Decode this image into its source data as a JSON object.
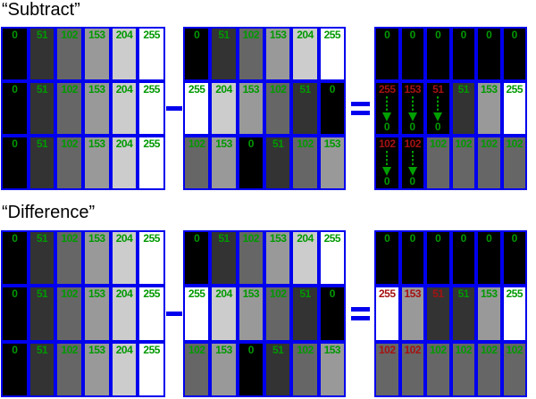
{
  "palette": {
    "background": "#ffffff",
    "grid_border_blue": "#0000ee",
    "value_green": "#009900",
    "value_red": "#a51212",
    "arrow_green": "#00a000",
    "title_black": "#000000"
  },
  "operators": {
    "minus": "−",
    "equals": "="
  },
  "sections": [
    {
      "title": "“Subtract”",
      "panels": [
        {
          "name": "operand-a",
          "rows": [
            [
              {
                "label": "0",
                "bg": 0,
                "color": "green"
              },
              {
                "label": "51",
                "bg": 51,
                "color": "green"
              },
              {
                "label": "102",
                "bg": 102,
                "color": "green"
              },
              {
                "label": "153",
                "bg": 153,
                "color": "green"
              },
              {
                "label": "204",
                "bg": 204,
                "color": "green"
              },
              {
                "label": "255",
                "bg": 255,
                "color": "green"
              }
            ],
            [
              {
                "label": "0",
                "bg": 0,
                "color": "green"
              },
              {
                "label": "51",
                "bg": 51,
                "color": "green"
              },
              {
                "label": "102",
                "bg": 102,
                "color": "green"
              },
              {
                "label": "153",
                "bg": 153,
                "color": "green"
              },
              {
                "label": "204",
                "bg": 204,
                "color": "green"
              },
              {
                "label": "255",
                "bg": 255,
                "color": "green"
              }
            ],
            [
              {
                "label": "0",
                "bg": 0,
                "color": "green"
              },
              {
                "label": "51",
                "bg": 51,
                "color": "green"
              },
              {
                "label": "102",
                "bg": 102,
                "color": "green"
              },
              {
                "label": "153",
                "bg": 153,
                "color": "green"
              },
              {
                "label": "204",
                "bg": 204,
                "color": "green"
              },
              {
                "label": "255",
                "bg": 255,
                "color": "green"
              }
            ]
          ]
        },
        {
          "name": "operand-b",
          "rows": [
            [
              {
                "label": "0",
                "bg": 0,
                "color": "green"
              },
              {
                "label": "51",
                "bg": 51,
                "color": "green"
              },
              {
                "label": "102",
                "bg": 102,
                "color": "green"
              },
              {
                "label": "153",
                "bg": 153,
                "color": "green"
              },
              {
                "label": "204",
                "bg": 204,
                "color": "green"
              },
              {
                "label": "255",
                "bg": 255,
                "color": "green"
              }
            ],
            [
              {
                "label": "255",
                "bg": 255,
                "color": "green"
              },
              {
                "label": "204",
                "bg": 204,
                "color": "green"
              },
              {
                "label": "153",
                "bg": 153,
                "color": "green"
              },
              {
                "label": "102",
                "bg": 102,
                "color": "green"
              },
              {
                "label": "51",
                "bg": 51,
                "color": "green"
              },
              {
                "label": "0",
                "bg": 0,
                "color": "green"
              }
            ],
            [
              {
                "label": "102",
                "bg": 102,
                "color": "green"
              },
              {
                "label": "153",
                "bg": 153,
                "color": "green"
              },
              {
                "label": "0",
                "bg": 0,
                "color": "green"
              },
              {
                "label": "51",
                "bg": 51,
                "color": "green"
              },
              {
                "label": "102",
                "bg": 102,
                "color": "green"
              },
              {
                "label": "153",
                "bg": 153,
                "color": "green"
              }
            ]
          ]
        },
        {
          "name": "result",
          "rows": [
            [
              {
                "label": "0",
                "bg": 0,
                "color": "green"
              },
              {
                "label": "0",
                "bg": 0,
                "color": "green"
              },
              {
                "label": "0",
                "bg": 0,
                "color": "green"
              },
              {
                "label": "0",
                "bg": 0,
                "color": "green"
              },
              {
                "label": "0",
                "bg": 0,
                "color": "green"
              },
              {
                "label": "0",
                "bg": 0,
                "color": "green"
              }
            ],
            [
              {
                "label": "255",
                "bg": 0,
                "color": "red",
                "arrow": true,
                "result": "0"
              },
              {
                "label": "153",
                "bg": 0,
                "color": "red",
                "arrow": true,
                "result": "0"
              },
              {
                "label": "51",
                "bg": 0,
                "color": "red",
                "arrow": true,
                "result": "0"
              },
              {
                "label": "51",
                "bg": 51,
                "color": "green"
              },
              {
                "label": "153",
                "bg": 153,
                "color": "green"
              },
              {
                "label": "255",
                "bg": 255,
                "color": "green"
              }
            ],
            [
              {
                "label": "102",
                "bg": 0,
                "color": "red",
                "arrow": true,
                "result": "0"
              },
              {
                "label": "102",
                "bg": 0,
                "color": "red",
                "arrow": true,
                "result": "0"
              },
              {
                "label": "102",
                "bg": 102,
                "color": "green"
              },
              {
                "label": "102",
                "bg": 102,
                "color": "green"
              },
              {
                "label": "102",
                "bg": 102,
                "color": "green"
              },
              {
                "label": "102",
                "bg": 102,
                "color": "green"
              }
            ]
          ]
        }
      ]
    },
    {
      "title": "“Difference”",
      "panels": [
        {
          "name": "operand-a",
          "rows": [
            [
              {
                "label": "0",
                "bg": 0,
                "color": "green"
              },
              {
                "label": "51",
                "bg": 51,
                "color": "green"
              },
              {
                "label": "102",
                "bg": 102,
                "color": "green"
              },
              {
                "label": "153",
                "bg": 153,
                "color": "green"
              },
              {
                "label": "204",
                "bg": 204,
                "color": "green"
              },
              {
                "label": "255",
                "bg": 255,
                "color": "green"
              }
            ],
            [
              {
                "label": "0",
                "bg": 0,
                "color": "green"
              },
              {
                "label": "51",
                "bg": 51,
                "color": "green"
              },
              {
                "label": "102",
                "bg": 102,
                "color": "green"
              },
              {
                "label": "153",
                "bg": 153,
                "color": "green"
              },
              {
                "label": "204",
                "bg": 204,
                "color": "green"
              },
              {
                "label": "255",
                "bg": 255,
                "color": "green"
              }
            ],
            [
              {
                "label": "0",
                "bg": 0,
                "color": "green"
              },
              {
                "label": "51",
                "bg": 51,
                "color": "green"
              },
              {
                "label": "102",
                "bg": 102,
                "color": "green"
              },
              {
                "label": "153",
                "bg": 153,
                "color": "green"
              },
              {
                "label": "204",
                "bg": 204,
                "color": "green"
              },
              {
                "label": "255",
                "bg": 255,
                "color": "green"
              }
            ]
          ]
        },
        {
          "name": "operand-b",
          "rows": [
            [
              {
                "label": "0",
                "bg": 0,
                "color": "green"
              },
              {
                "label": "51",
                "bg": 51,
                "color": "green"
              },
              {
                "label": "102",
                "bg": 102,
                "color": "green"
              },
              {
                "label": "153",
                "bg": 153,
                "color": "green"
              },
              {
                "label": "204",
                "bg": 204,
                "color": "green"
              },
              {
                "label": "255",
                "bg": 255,
                "color": "green"
              }
            ],
            [
              {
                "label": "255",
                "bg": 255,
                "color": "green"
              },
              {
                "label": "204",
                "bg": 204,
                "color": "green"
              },
              {
                "label": "153",
                "bg": 153,
                "color": "green"
              },
              {
                "label": "102",
                "bg": 102,
                "color": "green"
              },
              {
                "label": "51",
                "bg": 51,
                "color": "green"
              },
              {
                "label": "0",
                "bg": 0,
                "color": "green"
              }
            ],
            [
              {
                "label": "102",
                "bg": 102,
                "color": "green"
              },
              {
                "label": "153",
                "bg": 153,
                "color": "green"
              },
              {
                "label": "0",
                "bg": 0,
                "color": "green"
              },
              {
                "label": "51",
                "bg": 51,
                "color": "green"
              },
              {
                "label": "102",
                "bg": 102,
                "color": "green"
              },
              {
                "label": "153",
                "bg": 153,
                "color": "green"
              }
            ]
          ]
        },
        {
          "name": "result",
          "rows": [
            [
              {
                "label": "0",
                "bg": 0,
                "color": "green"
              },
              {
                "label": "0",
                "bg": 0,
                "color": "green"
              },
              {
                "label": "0",
                "bg": 0,
                "color": "green"
              },
              {
                "label": "0",
                "bg": 0,
                "color": "green"
              },
              {
                "label": "0",
                "bg": 0,
                "color": "green"
              },
              {
                "label": "0",
                "bg": 0,
                "color": "green"
              }
            ],
            [
              {
                "label": "255",
                "bg": 255,
                "color": "red"
              },
              {
                "label": "153",
                "bg": 153,
                "color": "red"
              },
              {
                "label": "51",
                "bg": 51,
                "color": "red"
              },
              {
                "label": "51",
                "bg": 51,
                "color": "green"
              },
              {
                "label": "153",
                "bg": 153,
                "color": "green"
              },
              {
                "label": "255",
                "bg": 255,
                "color": "green"
              }
            ],
            [
              {
                "label": "102",
                "bg": 102,
                "color": "red"
              },
              {
                "label": "102",
                "bg": 102,
                "color": "red"
              },
              {
                "label": "102",
                "bg": 102,
                "color": "green"
              },
              {
                "label": "102",
                "bg": 102,
                "color": "green"
              },
              {
                "label": "102",
                "bg": 102,
                "color": "green"
              },
              {
                "label": "102",
                "bg": 102,
                "color": "green"
              }
            ]
          ]
        }
      ]
    }
  ]
}
